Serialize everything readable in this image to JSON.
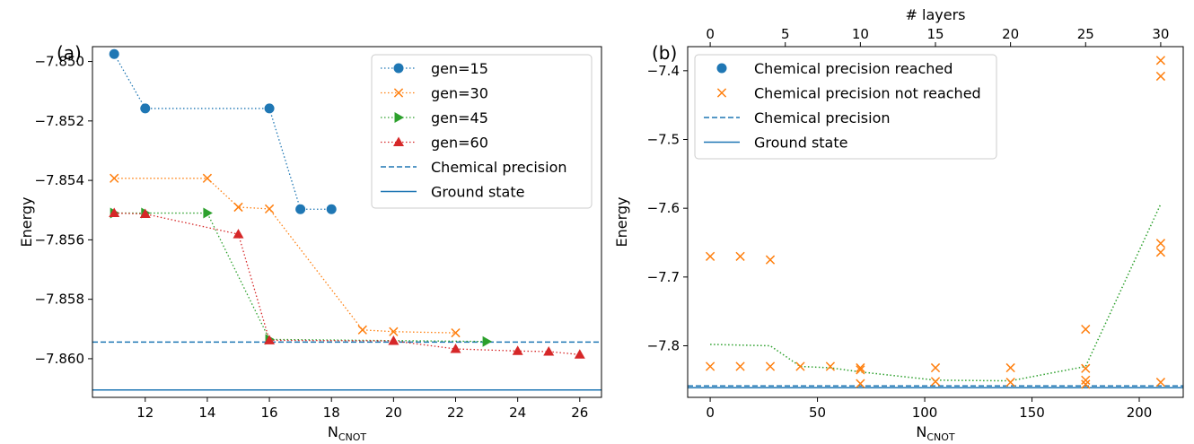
{
  "colors": {
    "gen15": "#1f77b4",
    "gen30": "#ff7f0e",
    "gen45": "#2ca02c",
    "gen60": "#d62728",
    "precision": "#1f77b4",
    "ground": "#1f77b4"
  },
  "chart_data": [
    {
      "type": "line",
      "panel_label": "(a)",
      "xlabel_main": "N",
      "xlabel_sub": "CNOT",
      "ylabel": "Energy",
      "xlim": [
        10.3,
        26.7
      ],
      "ylim": [
        -7.8613,
        -7.8495
      ],
      "xticks": [
        12,
        14,
        16,
        18,
        20,
        22,
        24,
        26
      ],
      "xtick_labels": [
        "12",
        "14",
        "16",
        "18",
        "20",
        "22",
        "24",
        "26"
      ],
      "yticks": [
        -7.85,
        -7.852,
        -7.854,
        -7.856,
        -7.858,
        -7.86
      ],
      "ytick_labels": [
        "−7.850",
        "−7.852",
        "−7.854",
        "−7.856",
        "−7.858",
        "−7.860"
      ],
      "legend_position": "top-right",
      "series": [
        {
          "name": "gen=15",
          "marker": "circle",
          "color": "#1f77b4",
          "x": [
            11,
            12,
            16,
            17,
            18
          ],
          "y": [
            -7.84975,
            -7.85158,
            -7.85158,
            -7.85497,
            -7.85497
          ]
        },
        {
          "name": "gen=30",
          "marker": "x",
          "color": "#ff7f0e",
          "x": [
            11,
            14,
            15,
            16,
            19,
            20,
            22
          ],
          "y": [
            -7.85393,
            -7.85393,
            -7.8549,
            -7.85496,
            -7.85903,
            -7.85909,
            -7.85913
          ]
        },
        {
          "name": "gen=45",
          "marker": "triangle-right",
          "color": "#2ca02c",
          "x": [
            11,
            12,
            14,
            16,
            23
          ],
          "y": [
            -7.8551,
            -7.8551,
            -7.8551,
            -7.85935,
            -7.85942
          ]
        },
        {
          "name": "gen=60",
          "marker": "triangle-up",
          "color": "#d62728",
          "x": [
            11,
            12,
            15,
            16,
            20,
            22,
            24,
            25,
            26
          ],
          "y": [
            -7.8551,
            -7.85513,
            -7.85581,
            -7.85938,
            -7.8594,
            -7.85967,
            -7.85974,
            -7.85976,
            -7.85986
          ]
        }
      ],
      "hlines": [
        {
          "name": "Chemical precision",
          "y": -7.85944,
          "style": "dashed",
          "color": "#1f77b4"
        },
        {
          "name": "Ground state",
          "y": -7.86105,
          "style": "solid",
          "color": "#1f77b4"
        }
      ]
    },
    {
      "type": "scatter",
      "panel_label": "(b)",
      "xlabel_main": "N",
      "xlabel_sub": "CNOT",
      "xlabel_top": "# layers",
      "ylabel": "Energy",
      "xlim": [
        -10.5,
        220.5
      ],
      "ylim": [
        -7.875,
        -7.365
      ],
      "xticks": [
        0,
        50,
        100,
        150,
        200
      ],
      "xtick_labels": [
        "0",
        "50",
        "100",
        "150",
        "200"
      ],
      "top_xticks": [
        0,
        5,
        10,
        15,
        20,
        25,
        30
      ],
      "top_xtick_labels": [
        "0",
        "5",
        "10",
        "15",
        "20",
        "25",
        "30"
      ],
      "top_xlim": [
        -1.5,
        31.5
      ],
      "yticks": [
        -7.4,
        -7.5,
        -7.6,
        -7.7,
        -7.8
      ],
      "ytick_labels": [
        "−7.4",
        "−7.5",
        "−7.6",
        "−7.7",
        "−7.8"
      ],
      "legend_position": "top-left",
      "series": [
        {
          "name": "Chemical precision reached",
          "marker": "circle",
          "color": "#1f77b4",
          "x": [],
          "y": []
        },
        {
          "name": "Chemical precision not reached",
          "marker": "x",
          "color": "#ff7f0e",
          "x": [
            0,
            0,
            14,
            14,
            28,
            28,
            42,
            56,
            70,
            70,
            70,
            105,
            105,
            140,
            140,
            175,
            175,
            175,
            175,
            210,
            210,
            210,
            210,
            210
          ],
          "y": [
            -7.67,
            -7.83,
            -7.67,
            -7.83,
            -7.675,
            -7.83,
            -7.83,
            -7.83,
            -7.832,
            -7.835,
            -7.855,
            -7.832,
            -7.852,
            -7.832,
            -7.853,
            -7.776,
            -7.833,
            -7.85,
            -7.856,
            -7.385,
            -7.408,
            -7.651,
            -7.664,
            -7.853
          ]
        }
      ],
      "trend_line": {
        "color": "#2ca02c",
        "style": "dotted",
        "x": [
          0,
          28,
          42,
          56,
          70,
          105,
          140,
          175,
          210
        ],
        "y": [
          -7.798,
          -7.8,
          -7.83,
          -7.832,
          -7.838,
          -7.85,
          -7.851,
          -7.83,
          -7.594
        ]
      },
      "hlines": [
        {
          "name": "Chemical precision",
          "y": -7.8584,
          "style": "dashed",
          "color": "#1f77b4"
        },
        {
          "name": "Ground state",
          "y": -7.861,
          "style": "solid",
          "color": "#1f77b4"
        }
      ]
    }
  ]
}
